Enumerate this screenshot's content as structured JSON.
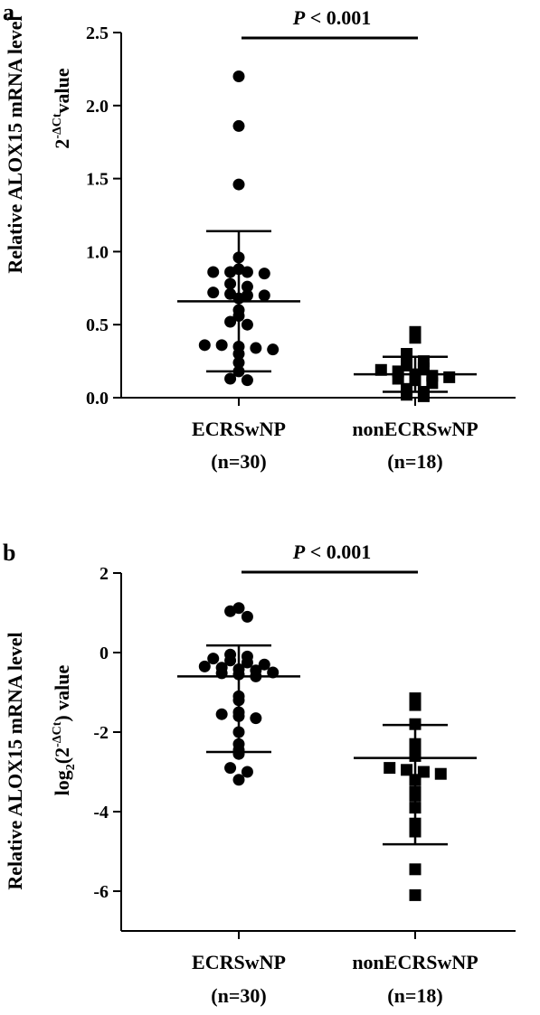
{
  "chart_data": [
    {
      "type": "scatter",
      "panel_label": "a",
      "ylabel_line1": "Relative ALOX15 mRNA level",
      "ylabel_line2_base": "2",
      "ylabel_line2_sup": "-ΔCt",
      "ylabel_line2_tail": "value",
      "ylim": [
        0,
        2.5
      ],
      "yticks": [
        "0.0",
        "0.5",
        "1.0",
        "1.5",
        "2.0",
        "2.5"
      ],
      "significance": {
        "italic": "P",
        "text": " < 0.001"
      },
      "groups": [
        {
          "name_line1": "ECRSwNP",
          "name_line2": "(n=30)",
          "marker": "circle",
          "mean": 0.66,
          "sd_upper": 1.14,
          "sd_lower": 0.18,
          "values": [
            2.2,
            1.86,
            1.46,
            0.96,
            0.88,
            0.86,
            0.86,
            0.86,
            0.85,
            0.78,
            0.76,
            0.72,
            0.71,
            0.7,
            0.7,
            0.68,
            0.6,
            0.56,
            0.52,
            0.5,
            0.36,
            0.36,
            0.35,
            0.34,
            0.33,
            0.3,
            0.24,
            0.18,
            0.13,
            0.12
          ]
        },
        {
          "name_line1": "nonECRSwNP",
          "name_line2": "(n=18)",
          "marker": "square",
          "mean": 0.16,
          "sd_upper": 0.28,
          "sd_lower": 0.04,
          "values": [
            0.45,
            0.41,
            0.3,
            0.25,
            0.22,
            0.2,
            0.19,
            0.18,
            0.16,
            0.15,
            0.14,
            0.13,
            0.12,
            0.1,
            0.06,
            0.04,
            0.02,
            0.01
          ]
        }
      ]
    },
    {
      "type": "scatter",
      "panel_label": "b",
      "ylabel_line1": "Relative ALOX15 mRNA level",
      "ylabel_line2_base": "log",
      "ylabel_line2_sub": "2",
      "ylabel_line2_mid": "(2",
      "ylabel_line2_sup": "-ΔCt",
      "ylabel_line2_tail": ") value",
      "ylim": [
        -7,
        2
      ],
      "yticks": [
        "-6",
        "-4",
        "-2",
        "0",
        "2"
      ],
      "significance": {
        "italic": "P",
        "text": " < 0.001"
      },
      "groups": [
        {
          "name_line1": "ECRSwNP",
          "name_line2": "(n=30)",
          "marker": "circle",
          "mean": -0.6,
          "sd_upper": 0.18,
          "sd_lower": -2.5,
          "values": [
            1.12,
            1.04,
            0.9,
            -0.05,
            -0.1,
            -0.15,
            -0.2,
            -0.25,
            -0.3,
            -0.35,
            -0.38,
            -0.42,
            -0.45,
            -0.5,
            -0.52,
            -0.55,
            -0.6,
            -1.1,
            -1.2,
            -1.5,
            -1.55,
            -1.6,
            -1.65,
            -2.0,
            -2.3,
            -2.45,
            -2.55,
            -2.9,
            -3.0,
            -3.2
          ]
        },
        {
          "name_line1": "nonECRSwNP",
          "name_line2": "(n=18)",
          "marker": "square",
          "mean": -2.65,
          "sd_upper": -1.82,
          "sd_lower": -4.82,
          "values": [
            -1.15,
            -1.32,
            -1.8,
            -2.3,
            -2.4,
            -2.6,
            -2.9,
            -2.95,
            -3.0,
            -3.05,
            -3.2,
            -3.5,
            -3.6,
            -3.9,
            -4.3,
            -4.5,
            -5.45,
            -6.1
          ]
        }
      ]
    }
  ]
}
